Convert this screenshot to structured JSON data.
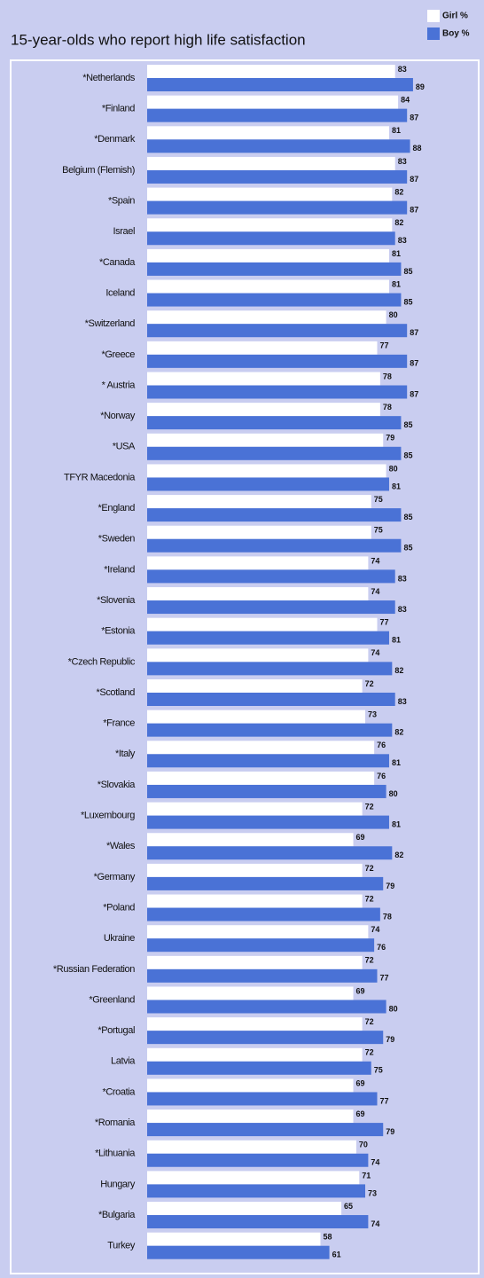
{
  "chart_data": {
    "type": "hbar",
    "title": "15-year-olds who report high life satisfaction",
    "categories": [
      "*Netherlands",
      "*Finland",
      "*Denmark",
      "Belgium (Flemish)",
      "*Spain",
      "Israel",
      "*Canada",
      "Iceland",
      "*Switzerland",
      "*Greece",
      "* Austria",
      "*Norway",
      "*USA",
      "TFYR Macedonia",
      "*England",
      "*Sweden",
      "*Ireland",
      "*Slovenia",
      "*Estonia",
      "*Czech Republic",
      "*Scotland",
      "*France",
      "*Italy",
      "*Slovakia",
      "*Luxembourg",
      "*Wales",
      "*Germany",
      "*Poland",
      "Ukraine",
      "*Russian Federation",
      "*Greenland",
      "*Portugal",
      "Latvia",
      "*Croatia",
      "*Romania",
      "*Lithuania",
      "Hungary",
      "*Bulgaria",
      "Turkey"
    ],
    "series": [
      {
        "name": "Girl %",
        "color": "#ffffff",
        "values": [
          83,
          84,
          81,
          83,
          82,
          82,
          81,
          81,
          80,
          77,
          78,
          78,
          79,
          80,
          75,
          75,
          74,
          74,
          77,
          74,
          72,
          73,
          76,
          76,
          72,
          69,
          72,
          72,
          74,
          72,
          69,
          72,
          72,
          69,
          69,
          70,
          71,
          65,
          58
        ]
      },
      {
        "name": "Boy %",
        "color": "#4a72d6",
        "values": [
          89,
          87,
          88,
          87,
          87,
          83,
          85,
          85,
          87,
          87,
          87,
          85,
          85,
          81,
          85,
          85,
          83,
          83,
          81,
          82,
          83,
          82,
          81,
          80,
          81,
          82,
          79,
          78,
          76,
          77,
          80,
          79,
          75,
          77,
          79,
          74,
          73,
          74,
          61
        ]
      }
    ],
    "xlim": [
      0,
      100
    ],
    "legend": "top-right"
  }
}
